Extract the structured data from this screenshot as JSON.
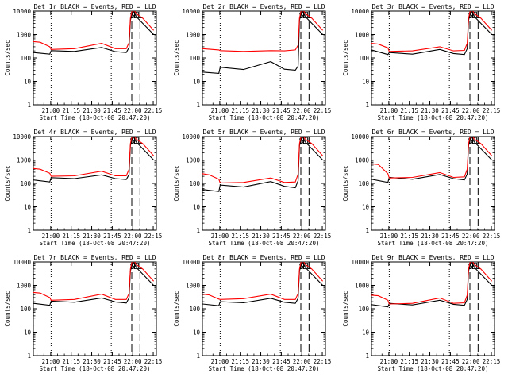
{
  "chart_data": [
    {
      "type": "line",
      "title": "Det 1r BLACK = Events, RED = LLD",
      "xlabel": "Start Time (18-Oct-08 20:47:20)",
      "ylabel": "Counts/sec",
      "xticks": [
        "21:00",
        "21:15",
        "21:30",
        "21:45",
        "22:00",
        "22:15"
      ],
      "yticks": [
        "1",
        "10",
        "100",
        "1000",
        "10000"
      ],
      "ylim": [
        1,
        10000
      ],
      "yscale": "log",
      "markers": [
        "S",
        "E",
        "L"
      ],
      "colors": {
        "events": "#000000",
        "lld": "#ff0000"
      },
      "series": [
        {
          "x": [
            0,
            12,
            13,
            30,
            50,
            60,
            68,
            70,
            71,
            72,
            73,
            75,
            80,
            88
          ],
          "y": [
            170,
            145,
            205,
            190,
            280,
            185,
            170,
            280,
            4000,
            7000,
            12000,
            6000,
            3000,
            1000
          ]
        },
        {
          "x": [
            0,
            5,
            12,
            13,
            30,
            50,
            60,
            68,
            70,
            71,
            72,
            73,
            75,
            80,
            88
          ],
          "y": [
            500,
            470,
            300,
            230,
            250,
            420,
            250,
            250,
            450,
            5000,
            9000,
            14000,
            8000,
            5000,
            1500
          ]
        }
      ]
    },
    {
      "type": "line",
      "title": "Det 2r BLACK = Events, RED = LLD",
      "xlabel": "Start Time (18-Oct-08 20:47:20)",
      "ylabel": "Counts/sec",
      "xticks": [
        "21:00",
        "21:15",
        "21:30",
        "21:45",
        "22:00",
        "22:15"
      ],
      "yticks": [
        "1",
        "10",
        "100",
        "1000",
        "10000"
      ],
      "ylim": [
        1,
        10000
      ],
      "yscale": "log",
      "markers": [
        "S",
        "E",
        "L"
      ],
      "colors": {
        "events": "#000000",
        "lld": "#ff0000"
      },
      "series": [
        {
          "x": [
            0,
            12,
            13,
            30,
            50,
            60,
            68,
            70,
            71,
            72,
            73,
            75,
            80,
            88
          ],
          "y": [
            25,
            22,
            40,
            32,
            70,
            33,
            30,
            45,
            4000,
            7000,
            12000,
            6000,
            3000,
            1000
          ]
        },
        {
          "x": [
            0,
            12,
            13,
            30,
            50,
            60,
            68,
            70,
            71,
            72,
            73,
            75,
            80,
            88
          ],
          "y": [
            250,
            220,
            205,
            190,
            205,
            200,
            220,
            350,
            5000,
            9000,
            14000,
            8000,
            5000,
            1500
          ]
        }
      ]
    },
    {
      "type": "line",
      "title": "Det 3r BLACK = Events, RED = LLD",
      "xlabel": "Start Time (18-Oct-08 20:47:20)",
      "ylabel": "Counts/sec",
      "xticks": [
        "21:00",
        "21:15",
        "21:30",
        "21:45",
        "22:00",
        "22:15"
      ],
      "yticks": [
        "1",
        "10",
        "100",
        "1000",
        "10000"
      ],
      "ylim": [
        1,
        10000
      ],
      "yscale": "log",
      "markers": [
        "S",
        "E",
        "L"
      ],
      "colors": {
        "events": "#000000",
        "lld": "#ff0000"
      },
      "series": [
        {
          "x": [
            0,
            12,
            13,
            30,
            50,
            60,
            68,
            70,
            71,
            72,
            73,
            75,
            80,
            88
          ],
          "y": [
            220,
            140,
            170,
            145,
            230,
            155,
            140,
            250,
            4000,
            7000,
            12000,
            6000,
            3000,
            1000
          ]
        },
        {
          "x": [
            0,
            5,
            12,
            13,
            30,
            50,
            60,
            68,
            70,
            71,
            72,
            73,
            75,
            80,
            88
          ],
          "y": [
            420,
            390,
            270,
            190,
            200,
            300,
            200,
            210,
            420,
            5000,
            9000,
            14000,
            8000,
            5000,
            1500
          ]
        }
      ]
    },
    {
      "type": "line",
      "title": "Det 4r BLACK = Events, RED = LLD",
      "xlabel": "Start Time (18-Oct-08 20:47:20)",
      "ylabel": "Counts/sec",
      "xticks": [
        "21:00",
        "21:15",
        "21:30",
        "21:45",
        "22:00",
        "22:15"
      ],
      "yticks": [
        "1",
        "10",
        "100",
        "1000",
        "10000"
      ],
      "ylim": [
        1,
        10000
      ],
      "yscale": "log",
      "markers": [
        "S",
        "E",
        "L"
      ],
      "colors": {
        "events": "#000000",
        "lld": "#ff0000"
      },
      "series": [
        {
          "x": [
            0,
            12,
            13,
            30,
            50,
            60,
            68,
            70,
            71,
            72,
            73,
            75,
            80,
            88
          ],
          "y": [
            140,
            115,
            175,
            160,
            230,
            160,
            145,
            240,
            4000,
            7000,
            12000,
            6000,
            3000,
            1000
          ]
        },
        {
          "x": [
            0,
            5,
            12,
            13,
            30,
            50,
            60,
            68,
            70,
            71,
            72,
            73,
            75,
            80,
            88
          ],
          "y": [
            430,
            400,
            270,
            200,
            210,
            330,
            210,
            210,
            400,
            5000,
            9000,
            14000,
            8000,
            5000,
            1500
          ]
        }
      ]
    },
    {
      "type": "line",
      "title": "Det 5r BLACK = Events, RED = LLD",
      "xlabel": "Start Time (18-Oct-08 20:47:20)",
      "ylabel": "Counts/sec",
      "xticks": [
        "21:00",
        "21:15",
        "21:30",
        "21:45",
        "22:00",
        "22:15"
      ],
      "yticks": [
        "1",
        "10",
        "100",
        "1000",
        "10000"
      ],
      "ylim": [
        1,
        10000
      ],
      "yscale": "log",
      "markers": [
        "S",
        "E",
        "L"
      ],
      "colors": {
        "events": "#000000",
        "lld": "#ff0000"
      },
      "series": [
        {
          "x": [
            0,
            12,
            13,
            30,
            50,
            60,
            68,
            70,
            71,
            72,
            73,
            75,
            80,
            88
          ],
          "y": [
            55,
            45,
            85,
            70,
            120,
            75,
            65,
            130,
            4000,
            7000,
            12000,
            6000,
            3000,
            1000
          ]
        },
        {
          "x": [
            0,
            5,
            12,
            13,
            30,
            50,
            60,
            68,
            70,
            71,
            72,
            73,
            75,
            80,
            88
          ],
          "y": [
            260,
            230,
            150,
            105,
            110,
            170,
            110,
            115,
            250,
            5000,
            9000,
            14000,
            8000,
            5000,
            1500
          ]
        }
      ]
    },
    {
      "type": "line",
      "title": "Det 6r BLACK = Events, RED = LLD",
      "xlabel": "Start Time (18-Oct-08 20:47:20)",
      "ylabel": "Counts/sec",
      "xticks": [
        "21:00",
        "21:15",
        "21:30",
        "21:45",
        "22:00",
        "22:15"
      ],
      "yticks": [
        "1",
        "10",
        "100",
        "1000",
        "10000"
      ],
      "ylim": [
        1,
        10000
      ],
      "yscale": "log",
      "markers": [
        "S",
        "E",
        "L"
      ],
      "colors": {
        "events": "#000000",
        "lld": "#ff0000"
      },
      "series": [
        {
          "x": [
            0,
            12,
            13,
            30,
            50,
            60,
            68,
            70,
            71,
            72,
            73,
            75,
            80,
            88
          ],
          "y": [
            150,
            110,
            180,
            150,
            240,
            160,
            140,
            250,
            4000,
            7000,
            12000,
            6000,
            3000,
            1000
          ]
        },
        {
          "x": [
            0,
            5,
            12,
            13,
            30,
            50,
            60,
            68,
            70,
            71,
            72,
            73,
            75,
            80,
            88
          ],
          "y": [
            680,
            640,
            260,
            170,
            180,
            290,
            180,
            190,
            400,
            5000,
            9000,
            14000,
            8000,
            5000,
            1500
          ]
        }
      ]
    },
    {
      "type": "line",
      "title": "Det 7r BLACK = Events, RED = LLD",
      "xlabel": "Start Time (18-Oct-08 20:47:20)",
      "ylabel": "Counts/sec",
      "xticks": [
        "21:00",
        "21:15",
        "21:30",
        "21:45",
        "22:00",
        "22:15"
      ],
      "yticks": [
        "1",
        "10",
        "100",
        "1000",
        "10000"
      ],
      "ylim": [
        1,
        10000
      ],
      "yscale": "log",
      "markers": [
        "S",
        "E",
        "L"
      ],
      "colors": {
        "events": "#000000",
        "lld": "#ff0000"
      },
      "series": [
        {
          "x": [
            0,
            12,
            13,
            30,
            50,
            60,
            68,
            70,
            71,
            72,
            73,
            75,
            80,
            88
          ],
          "y": [
            170,
            140,
            210,
            190,
            290,
            195,
            175,
            290,
            4000,
            7000,
            12000,
            6000,
            3000,
            1000
          ]
        },
        {
          "x": [
            0,
            5,
            12,
            13,
            30,
            50,
            60,
            68,
            70,
            71,
            72,
            73,
            75,
            80,
            88
          ],
          "y": [
            500,
            470,
            300,
            230,
            250,
            420,
            250,
            250,
            450,
            5000,
            9000,
            14000,
            8000,
            5000,
            1500
          ]
        }
      ]
    },
    {
      "type": "line",
      "title": "Det 8r BLACK = Events, RED = LLD",
      "xlabel": "Start Time (18-Oct-08 20:47:20)",
      "ylabel": "Counts/sec",
      "xticks": [
        "21:00",
        "21:15",
        "21:30",
        "21:45",
        "22:00",
        "22:15"
      ],
      "yticks": [
        "1",
        "10",
        "100",
        "1000",
        "10000"
      ],
      "ylim": [
        1,
        10000
      ],
      "yscale": "log",
      "markers": [
        "S",
        "E",
        "L"
      ],
      "colors": {
        "events": "#000000",
        "lld": "#ff0000"
      },
      "series": [
        {
          "x": [
            0,
            12,
            13,
            30,
            50,
            60,
            68,
            70,
            71,
            72,
            73,
            75,
            80,
            88
          ],
          "y": [
            160,
            135,
            200,
            180,
            280,
            190,
            170,
            280,
            4000,
            7000,
            12000,
            6000,
            3000,
            1000
          ]
        },
        {
          "x": [
            0,
            5,
            12,
            13,
            30,
            50,
            60,
            68,
            70,
            71,
            72,
            73,
            75,
            80,
            88
          ],
          "y": [
            420,
            390,
            260,
            250,
            270,
            420,
            250,
            250,
            450,
            5000,
            9000,
            14000,
            8000,
            5000,
            1500
          ]
        }
      ]
    },
    {
      "type": "line",
      "title": "Det 9r BLACK = Events, RED = LLD",
      "xlabel": "Start Time (18-Oct-08 20:47:20)",
      "ylabel": "Counts/sec",
      "xticks": [
        "21:00",
        "21:15",
        "21:30",
        "21:45",
        "22:00",
        "22:15"
      ],
      "yticks": [
        "1",
        "10",
        "100",
        "1000",
        "10000"
      ],
      "ylim": [
        1,
        10000
      ],
      "yscale": "log",
      "markers": [
        "S",
        "E",
        "L"
      ],
      "colors": {
        "events": "#000000",
        "lld": "#ff0000"
      },
      "series": [
        {
          "x": [
            0,
            12,
            13,
            30,
            50,
            60,
            68,
            70,
            71,
            72,
            73,
            75,
            80,
            88
          ],
          "y": [
            150,
            120,
            170,
            145,
            230,
            155,
            140,
            250,
            4000,
            7000,
            12000,
            6000,
            3000,
            1000
          ]
        },
        {
          "x": [
            0,
            5,
            12,
            13,
            30,
            50,
            60,
            68,
            70,
            71,
            72,
            73,
            75,
            80,
            88
          ],
          "y": [
            380,
            360,
            230,
            160,
            170,
            290,
            170,
            180,
            380,
            5000,
            9000,
            14000,
            8000,
            5000,
            1500
          ]
        }
      ]
    }
  ]
}
